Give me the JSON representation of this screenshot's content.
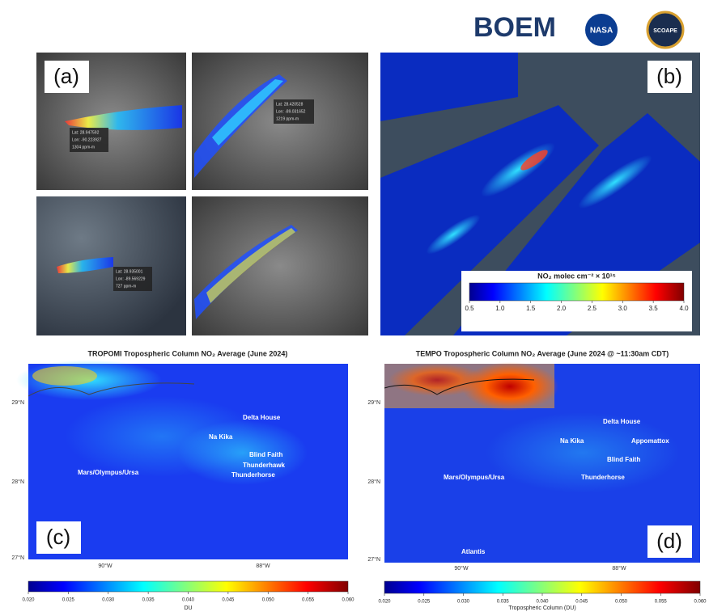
{
  "logos": [
    "BOEM",
    "NASA",
    "SCOAPE"
  ],
  "panels": {
    "a": {
      "label": "(a)",
      "annotations": [
        [
          "Lat: 28.947592",
          "Lon: -90.223927",
          "1304 ppm-m"
        ],
        [
          "Lat: 28.420528",
          "Lon: -89.031652",
          "1219 ppm-m"
        ],
        [
          "Lat: 28.935001",
          "Lon: -89.569229",
          "727 ppm-m"
        ]
      ]
    },
    "b": {
      "label": "(b)",
      "colorbar": {
        "title": "NO₂ molec cm⁻² × 10¹⁵",
        "lim": [
          0.5,
          4.0
        ],
        "ticks": [
          0.5,
          {
            "value": 1.0,
            "label": "1.0"
          },
          1.5,
          {
            "value": 2.0,
            "label": "2.0"
          },
          2.5,
          {
            "value": 3.0,
            "label": "3.0"
          },
          3.5,
          {
            "value": 4.0,
            "label": "4.0"
          }
        ]
      }
    },
    "c": {
      "label": "(c)",
      "title": "TROPOMI Tropospheric Column NO₂ Average (June 2024)",
      "lat_labels": [
        "29°N",
        "28°N",
        "27°N"
      ],
      "lon_labels": [
        "90°W",
        "88°W"
      ],
      "sites": [
        "Delta House",
        "Na Kika",
        "Blind Faith",
        "Thunderhawk",
        "Thunderhorse",
        "Mars/Olympus/Ursa"
      ],
      "colorbar": {
        "title": "DU",
        "lim": [
          0.02,
          0.06
        ],
        "ticks": [
          {
            "value": 0.02,
            "label": "0.020"
          },
          0.025,
          {
            "value": 0.03,
            "label": "0.030"
          },
          0.035,
          {
            "value": 0.04,
            "label": "0.040"
          },
          0.045,
          {
            "value": 0.05,
            "label": "0.050"
          },
          0.055,
          {
            "value": 0.06,
            "label": "0.060"
          }
        ]
      }
    },
    "d": {
      "label": "(d)",
      "title": "TEMPO Tropospheric Column NO₂ Average (June 2024 @ ~11:30am CDT)",
      "lat_labels": [
        "29°N",
        "28°N",
        "27°N"
      ],
      "lon_labels": [
        "90°W",
        "88°W"
      ],
      "sites": [
        "Delta House",
        "Na Kika",
        "Appomattox",
        "Blind Faith",
        "Mars/Olympus/Ursa",
        "Thunderhorse",
        "Atlantis"
      ],
      "colorbar": {
        "title": "Tropospheric Column (DU)",
        "lim": [
          0.02,
          0.06
        ],
        "ticks": [
          {
            "value": 0.02,
            "label": "0.020"
          },
          0.025,
          {
            "value": 0.03,
            "label": "0.030"
          },
          0.035,
          {
            "value": 0.04,
            "label": "0.040"
          },
          0.045,
          {
            "value": 0.05,
            "label": "0.050"
          },
          0.055,
          {
            "value": 0.06,
            "label": "0.060"
          }
        ]
      }
    }
  }
}
